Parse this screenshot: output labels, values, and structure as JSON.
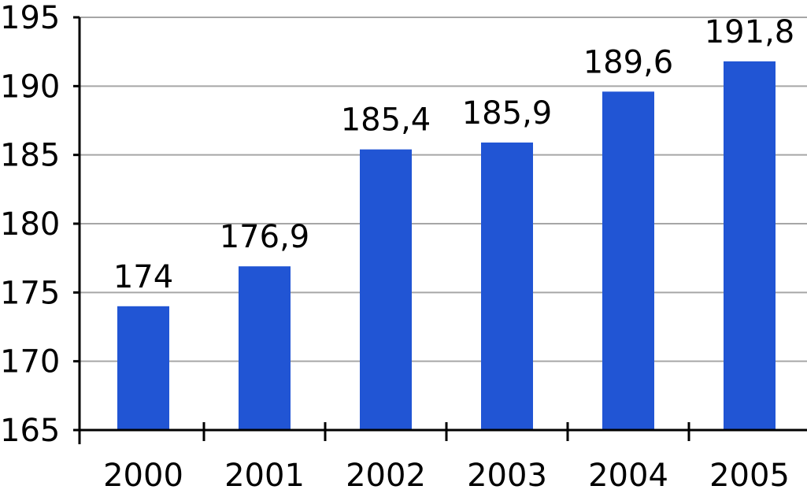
{
  "chart_data": {
    "type": "bar",
    "categories": [
      "2000",
      "2001",
      "2002",
      "2003",
      "2004",
      "2005"
    ],
    "values": [
      174,
      176.9,
      185.4,
      185.9,
      189.6,
      191.8
    ],
    "data_labels": [
      "174",
      "176,9",
      "185,4",
      "185,9",
      "189,6",
      "191,8"
    ],
    "y_ticks": [
      165,
      170,
      175,
      180,
      185,
      190,
      195
    ],
    "ylim": [
      165,
      195
    ],
    "grid": true,
    "legend": "none",
    "bar_color": "#2155d4",
    "grid_color": "#a6a6a6",
    "axis_color": "#000000"
  }
}
